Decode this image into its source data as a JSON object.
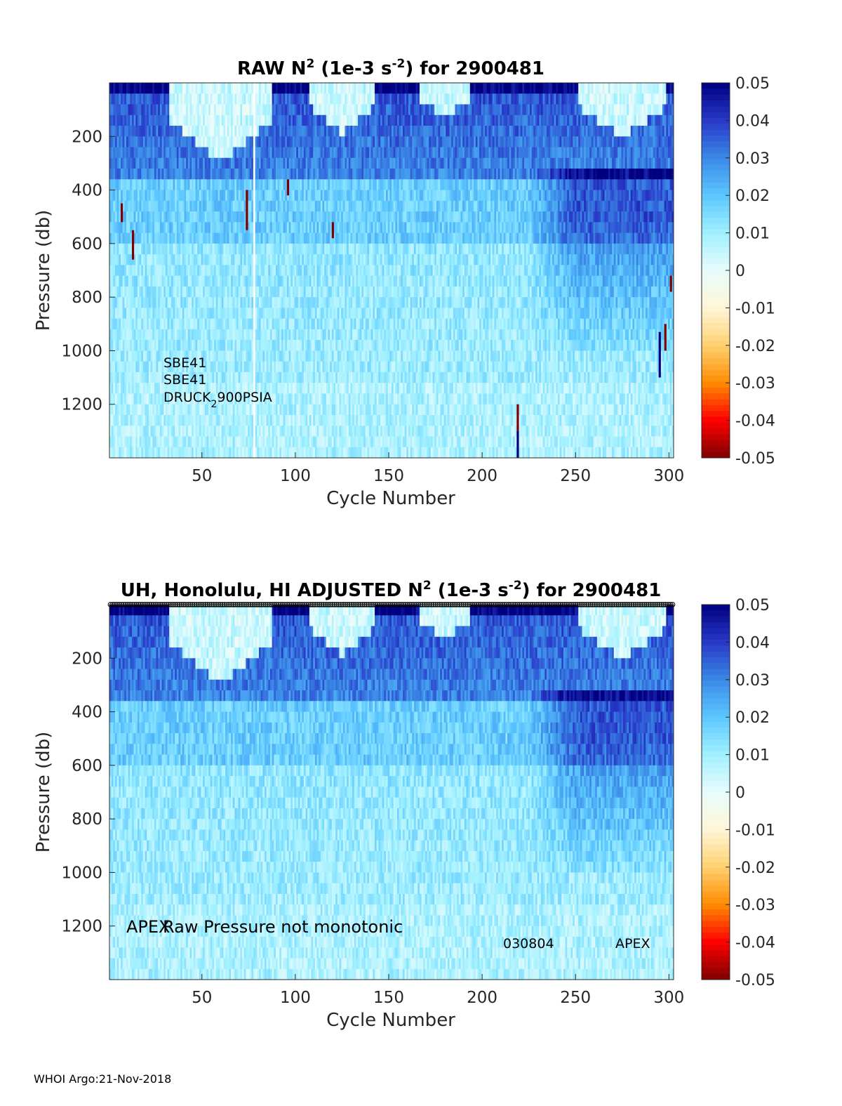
{
  "footer": "WHOI Argo:21-Nov-2018",
  "colormap": {
    "name": "jet-with-white-center",
    "stops": [
      "#7f0000",
      "#ff0000",
      "#ff8c00",
      "#ffd070",
      "#fff6d8",
      "#e8fcfc",
      "#a0f0ff",
      "#5cc7ff",
      "#3a88e6",
      "#2838c8",
      "#00007f"
    ]
  },
  "chart_data": [
    {
      "type": "heatmap",
      "title_prefix": "RAW N",
      "title_sup1": "2",
      "title_mid": " (1e-3 s",
      "title_sup2": "-2",
      "title_suffix": ") for 2900481",
      "xlabel": "Cycle Number",
      "ylabel": "Pressure (db)",
      "xlim": [
        1,
        302
      ],
      "ylim": [
        1400,
        0
      ],
      "xticks": [
        50,
        100,
        150,
        200,
        250,
        300
      ],
      "yticks": [
        200,
        400,
        600,
        800,
        1000,
        1200
      ],
      "clim": [
        -0.05,
        0.05
      ],
      "cticks": [
        "0.05",
        "0.04",
        "0.03",
        "0.02",
        "0.01",
        "0",
        "-0.01",
        "-0.02",
        "-0.03",
        "-0.04",
        "-0.05"
      ],
      "sensor_labels": [
        "SBE41",
        "SBE41"
      ],
      "pressure_sensor": {
        "base": "DRUCK",
        "sub": "2",
        "rest": "900PSIA"
      },
      "gap_cycles": [
        78
      ],
      "spikes": [
        {
          "cycle": 7,
          "p0": 450,
          "p1": 520,
          "value": -0.05
        },
        {
          "cycle": 13,
          "p0": 550,
          "p1": 660,
          "value": -0.05
        },
        {
          "cycle": 74,
          "p0": 400,
          "p1": 550,
          "value": -0.05
        },
        {
          "cycle": 96,
          "p0": 360,
          "p1": 420,
          "value": -0.05
        },
        {
          "cycle": 120,
          "p0": 520,
          "p1": 580,
          "value": -0.05
        },
        {
          "cycle": 219,
          "p0": 1200,
          "p1": 1300,
          "value": -0.05
        },
        {
          "cycle": 219,
          "p0": 1300,
          "p1": 1400,
          "value": 0.05
        },
        {
          "cycle": 295,
          "p0": 930,
          "p1": 1100,
          "value": 0.05
        },
        {
          "cycle": 298,
          "p0": 900,
          "p1": 1000,
          "value": -0.05
        },
        {
          "cycle": 301,
          "p0": 720,
          "p1": 780,
          "value": -0.05
        }
      ]
    },
    {
      "type": "heatmap",
      "title_prefix": "UH, Honolulu, HI  ADJUSTED N",
      "title_sup1": "2",
      "title_mid": " (1e-3 s",
      "title_sup2": "-2",
      "title_suffix": ") for 2900481",
      "xlabel": "Cycle Number",
      "ylabel": "Pressure (db)",
      "xlim": [
        1,
        302
      ],
      "ylim": [
        1400,
        0
      ],
      "xticks": [
        50,
        100,
        150,
        200,
        250,
        300
      ],
      "yticks": [
        200,
        400,
        600,
        800,
        1000,
        1200
      ],
      "clim": [
        -0.05,
        0.05
      ],
      "cticks": [
        "0.05",
        "0.04",
        "0.03",
        "0.02",
        "0.01",
        "0",
        "-0.01",
        "-0.02",
        "-0.03",
        "-0.04",
        "-0.05"
      ],
      "annotations": {
        "platform_left": "APEX",
        "warning": "Raw Pressure not monotonic",
        "firmware": "030804",
        "platform_right": "APEX"
      }
    }
  ]
}
